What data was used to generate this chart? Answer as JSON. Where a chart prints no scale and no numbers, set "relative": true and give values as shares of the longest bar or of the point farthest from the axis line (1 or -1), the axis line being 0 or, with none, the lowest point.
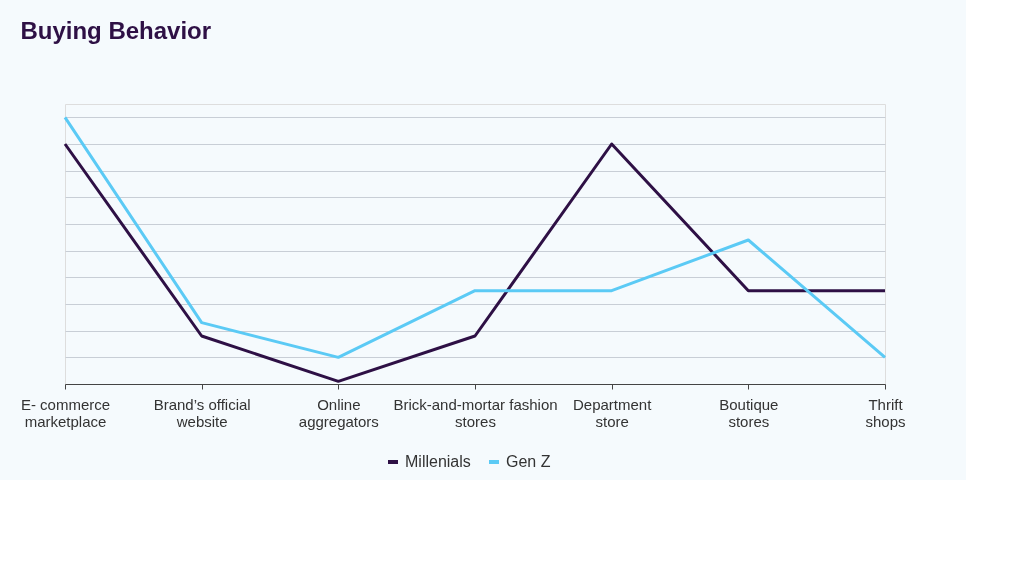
{
  "chart_data": {
    "type": "line",
    "title": "Buying Behavior",
    "relative": true,
    "grid": "y",
    "legend": "bottom",
    "marker": "none",
    "line_style": "solid",
    "categories": [
      "E- commerce marketplace",
      "Brand’s official website",
      "Online aggregators",
      "Brick-and-mortar fashion stores",
      "Department store",
      "Boutique stores",
      "Thrift shops"
    ],
    "series": [
      {
        "name": "Millenials",
        "color": "#2e1045",
        "values": [
          0.9,
          0.18,
          0.01,
          0.18,
          0.9,
          0.35,
          0.35
        ]
      },
      {
        "name": "Gen Z",
        "color": "#5bcaf5",
        "values": [
          1,
          0.23,
          0.1,
          0.35,
          0.35,
          0.54,
          0.1
        ]
      }
    ]
  }
}
